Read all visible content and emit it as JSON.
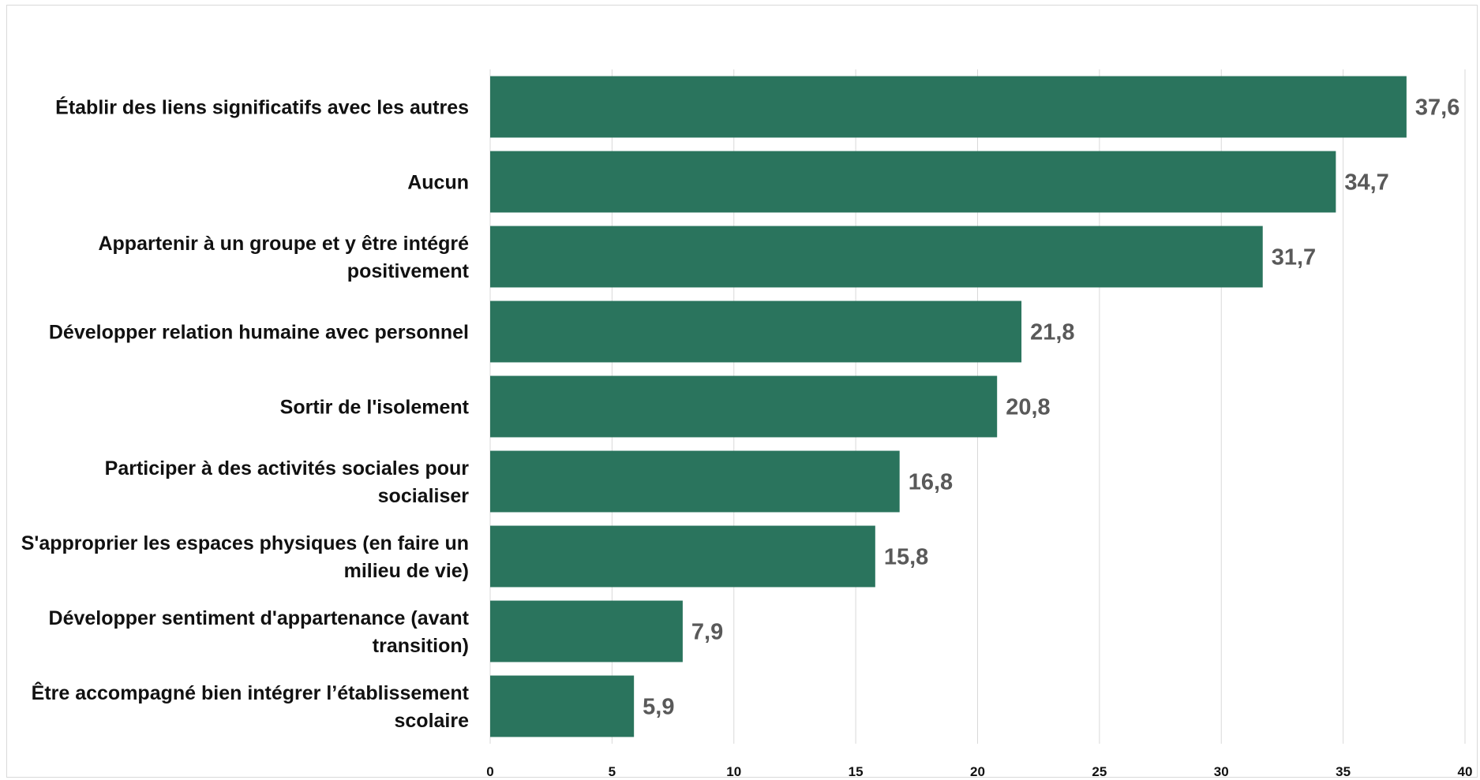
{
  "chart_data": {
    "type": "bar",
    "orientation": "horizontal",
    "categories": [
      [
        "Établir des liens significatifs avec les autres"
      ],
      [
        "Aucun"
      ],
      [
        "Appartenir à un groupe et y être intégré",
        "positivement"
      ],
      [
        "Développer relation humaine avec personnel"
      ],
      [
        "Sortir de l'isolement"
      ],
      [
        "Participer à des activités sociales pour",
        "socialiser"
      ],
      [
        "S'approprier les espaces physiques (en faire un",
        "milieu de vie)"
      ],
      [
        "Développer sentiment d'appartenance (avant",
        "transition)"
      ],
      [
        "Être accompagné  bien intégrer l’établissement",
        "scolaire"
      ]
    ],
    "values": [
      37.6,
      34.7,
      31.7,
      21.8,
      20.8,
      16.8,
      15.8,
      7.9,
      5.9
    ],
    "data_labels": [
      "37,6",
      "34,7",
      "31,7",
      "21,8",
      "20,8",
      "16,8",
      "15,8",
      "7,9",
      "5,9"
    ],
    "xlim": [
      0,
      40
    ],
    "xticks": [
      0,
      5,
      10,
      15,
      20,
      25,
      30,
      35,
      40
    ],
    "grid": "vertical",
    "legend": "none",
    "title": "",
    "xlabel": "",
    "ylabel": ""
  },
  "colors": {
    "bar": "#2a745d",
    "grid": "#d9d9d9",
    "data_label": "#595959"
  }
}
